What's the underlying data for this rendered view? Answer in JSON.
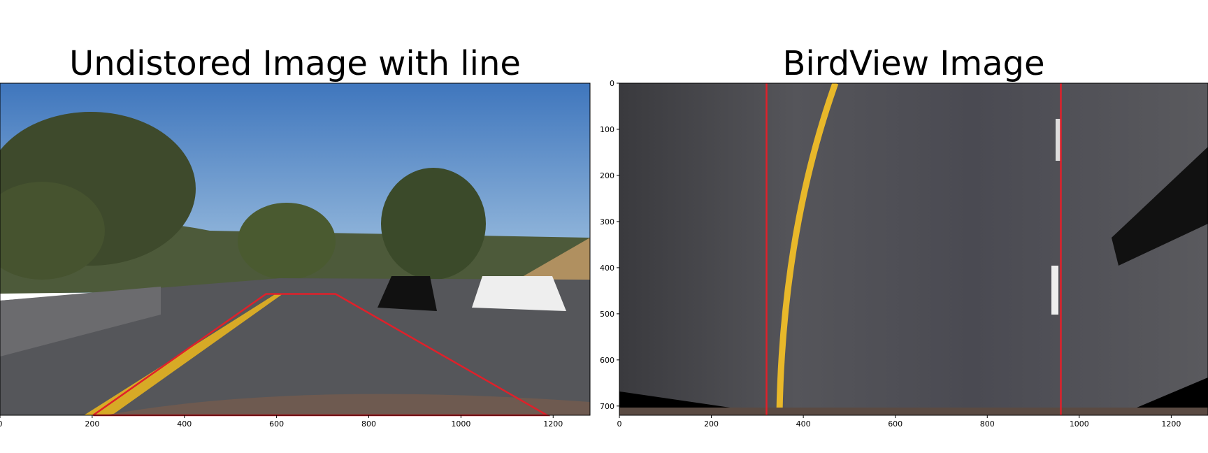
{
  "chart_data": [
    {
      "type": "image",
      "title": "Undistored Image with line",
      "xlim": [
        0,
        1280
      ],
      "ylim": [
        720,
        0
      ],
      "xticks": [
        0,
        200,
        400,
        600,
        800,
        1000,
        1200
      ],
      "lines": [
        {
          "x": [
            202,
            577,
            728,
            1187,
            202
          ],
          "y": [
            720,
            457,
            457,
            720,
            720
          ],
          "color": "#e0202a"
        }
      ]
    },
    {
      "type": "image",
      "title": "BirdView Image",
      "xlim": [
        0,
        1280
      ],
      "ylim": [
        720,
        0
      ],
      "xticks": [
        0,
        200,
        400,
        600,
        800,
        1000,
        1200
      ],
      "yticks": [
        0,
        100,
        200,
        300,
        400,
        500,
        600,
        700
      ],
      "lines": [
        {
          "x": [
            320,
            320
          ],
          "y": [
            0,
            720
          ],
          "color": "#e0202a"
        },
        {
          "x": [
            960,
            960
          ],
          "y": [
            0,
            720
          ],
          "color": "#e0202a"
        }
      ]
    }
  ]
}
